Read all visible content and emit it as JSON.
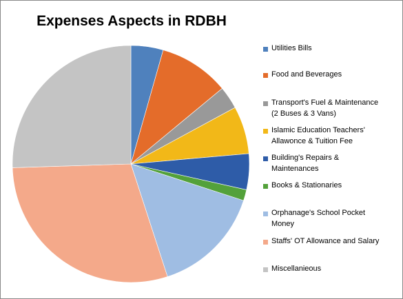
{
  "chart_data": {
    "type": "pie",
    "title": "Expenses Aspects in RDBH",
    "legend_position": "right",
    "slices": [
      {
        "label": "Utilities Bills",
        "lines": [
          "Utilities Bills"
        ],
        "value": 4.4,
        "color": "#4f81bd"
      },
      {
        "label": "Food and Beverages",
        "lines": [
          "Food and Beverages"
        ],
        "value": 9.6,
        "color": "#e46c2a"
      },
      {
        "label": "Transport's Fuel & Maintenance (2 Buses & 3 Vans)",
        "lines": [
          "Transport's Fuel & Maintenance",
          "(2 Buses & 3 Vans)"
        ],
        "value": 3.1,
        "color": "#999999"
      },
      {
        "label": "Islamic Education Teachers' Allawonce & Tuition Fee",
        "lines": [
          "Islamic Education Teachers'",
          "Allawonce & Tuition Fee"
        ],
        "value": 6.5,
        "color": "#f2b818"
      },
      {
        "label": "Building's Repairs & Maintenances",
        "lines": [
          "Building's Repairs &",
          "Maintenances"
        ],
        "value": 4.9,
        "color": "#2e5ca8"
      },
      {
        "label": "Books & Stationaries",
        "lines": [
          "Books & Stationaries"
        ],
        "value": 1.5,
        "color": "#53a13a"
      },
      {
        "label": "Orphanage's School Pocket Money",
        "lines": [
          "Orphanage's School Pocket",
          "Money"
        ],
        "value": 15.0,
        "color": "#9fbde3"
      },
      {
        "label": "Staffs' OT Allowance and Salary",
        "lines": [
          "Staffs' OT Allowance and Salary"
        ],
        "value": 29.5,
        "color": "#f4a98a"
      },
      {
        "label": "Miscellanieous",
        "lines": [
          "Miscellanieous"
        ],
        "value": 25.5,
        "color": "#c4c4c4"
      }
    ]
  }
}
